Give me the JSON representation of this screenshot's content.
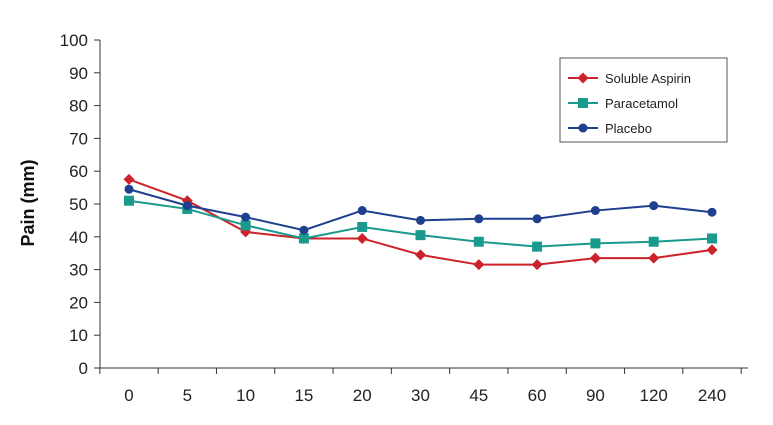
{
  "chart_data": {
    "type": "line",
    "title": "",
    "xlabel": "",
    "ylabel": "Pain (mm)",
    "ylim": [
      0,
      100
    ],
    "yticks": [
      "0",
      "10",
      "20",
      "30",
      "40",
      "50",
      "60",
      "70",
      "80",
      "90",
      "100"
    ],
    "categories": [
      "0",
      "5",
      "10",
      "15",
      "20",
      "30",
      "45",
      "60",
      "90",
      "120",
      "240"
    ],
    "grid": false,
    "legend_position": "top-right",
    "series": [
      {
        "name": "Soluble Aspirin",
        "color": "#cc2229",
        "marker": "diamond",
        "values": [
          57.5,
          51,
          41.5,
          39.5,
          39.5,
          34.5,
          31.5,
          31.5,
          33.5,
          33.5,
          36
        ]
      },
      {
        "name": "Paracetamol",
        "color": "#1a9a8c",
        "marker": "square",
        "values": [
          51,
          48.5,
          43.5,
          39.5,
          43,
          40.5,
          38.5,
          37,
          38,
          38.5,
          39.5
        ]
      },
      {
        "name": "Placebo",
        "color": "#1f3f8f",
        "marker": "circle",
        "values": [
          54.5,
          49.5,
          46,
          42,
          48,
          45,
          45.5,
          45.5,
          48,
          49.5,
          47.5
        ]
      }
    ]
  }
}
